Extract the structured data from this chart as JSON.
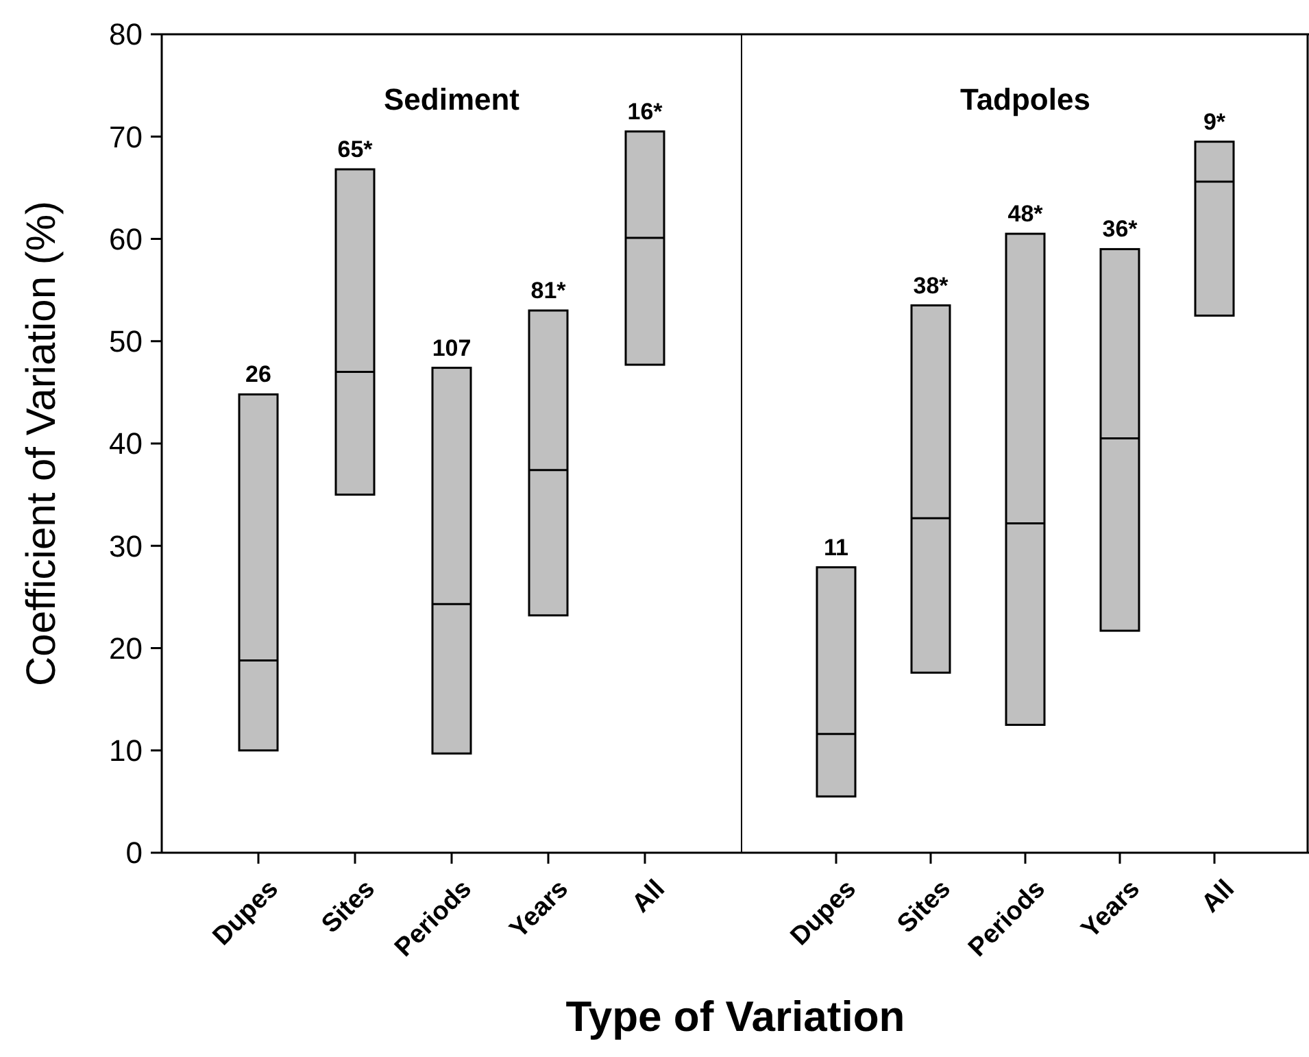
{
  "chart_data": [
    {
      "type": "box",
      "title": "Sediment",
      "ylabel": "Coefficient of Variation (%)",
      "xlabel": "Type of Variation",
      "categories": [
        "Dupes",
        "Sites",
        "Periods",
        "Years",
        "All"
      ],
      "color": "#c0c0c0",
      "ylim": [
        0,
        80
      ],
      "yticks": [
        0,
        10,
        20,
        30,
        40,
        50,
        60,
        70,
        80
      ],
      "boxes": [
        {
          "low": 10,
          "q1": 10,
          "median": 18.8,
          "q3": 44.8,
          "high": 44.8
        },
        {
          "low": 35,
          "q1": 35,
          "median": 47,
          "q3": 66.8,
          "high": 66.8
        },
        {
          "low": 9.7,
          "q1": 9.7,
          "median": 24.3,
          "q3": 47.4,
          "high": 47.4
        },
        {
          "low": 23.2,
          "q1": 23.2,
          "median": 37.4,
          "q3": 53,
          "high": 53
        },
        {
          "low": 47.7,
          "q1": 47.7,
          "median": 60.1,
          "q3": 70.5,
          "high": 70.5
        }
      ],
      "annotations": [
        {
          "text": "26",
          "x": "Dupes",
          "y": 44.8
        },
        {
          "text": "65*",
          "x": "Sites",
          "y": 66.8
        },
        {
          "text": "107",
          "x": "Periods",
          "y": 47.4
        },
        {
          "text": "81*",
          "x": "Years",
          "y": 53
        },
        {
          "text": "16*",
          "x": "All",
          "y": 70.5
        }
      ]
    },
    {
      "type": "box",
      "title": "Tadpoles",
      "categories": [
        "Dupes",
        "Sites",
        "Periods",
        "Years",
        "All"
      ],
      "color": "#c0c0c0",
      "ylim": [
        0,
        80
      ],
      "tick_labels": "x",
      "boxes": [
        {
          "low": 5.5,
          "q1": 5.5,
          "median": 11.6,
          "q3": 27.9,
          "high": 27.9
        },
        {
          "low": 17.6,
          "q1": 17.6,
          "median": 32.7,
          "q3": 53.5,
          "high": 53.5
        },
        {
          "low": 12.5,
          "q1": 12.5,
          "median": 32.2,
          "q3": 60.5,
          "high": 60.5
        },
        {
          "low": 21.7,
          "q1": 21.7,
          "median": 40.5,
          "q3": 59,
          "high": 59
        },
        {
          "low": 52.5,
          "q1": 52.5,
          "median": 65.6,
          "q3": 69.5,
          "high": 69.5
        }
      ],
      "annotations": [
        {
          "text": "11",
          "x": "Dupes",
          "y": 27.9
        },
        {
          "text": "38*",
          "x": "Sites",
          "y": 53.5
        },
        {
          "text": "48*",
          "x": "Periods",
          "y": 60.5
        },
        {
          "text": "36*",
          "x": "Years",
          "y": 59
        },
        {
          "text": "9*",
          "x": "All",
          "y": 69.5
        }
      ]
    }
  ]
}
